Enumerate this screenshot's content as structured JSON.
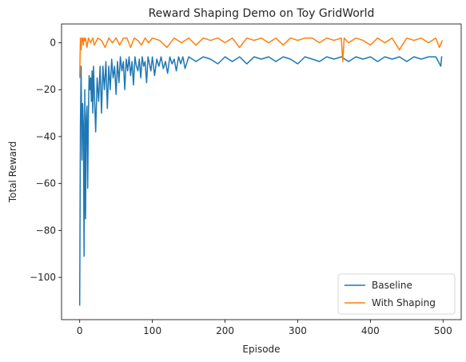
{
  "chart_data": {
    "type": "line",
    "title": "Reward Shaping Demo on Toy GridWorld",
    "xlabel": "Episode",
    "ylabel": "Total Reward",
    "xlim": [
      -25,
      525
    ],
    "ylim": [
      -118,
      8
    ],
    "xticks": [
      0,
      100,
      200,
      300,
      400,
      500
    ],
    "yticks": [
      -100,
      -80,
      -60,
      -40,
      -20,
      0
    ],
    "grid": false,
    "legend_position": "lower-right",
    "series": [
      {
        "name": "Baseline",
        "color": "#1f77b4",
        "x": [
          0,
          1,
          2,
          3,
          4,
          5,
          6,
          7,
          8,
          9,
          10,
          11,
          12,
          13,
          14,
          15,
          16,
          17,
          18,
          19,
          20,
          22,
          24,
          26,
          28,
          30,
          32,
          34,
          36,
          38,
          40,
          42,
          44,
          46,
          48,
          50,
          52,
          54,
          56,
          58,
          60,
          62,
          64,
          66,
          68,
          70,
          72,
          74,
          76,
          78,
          80,
          82,
          84,
          86,
          88,
          90,
          92,
          94,
          96,
          98,
          100,
          103,
          106,
          109,
          112,
          115,
          118,
          121,
          124,
          127,
          130,
          133,
          136,
          139,
          142,
          145,
          150,
          160,
          170,
          180,
          190,
          200,
          210,
          220,
          230,
          240,
          250,
          260,
          270,
          280,
          290,
          300,
          310,
          320,
          330,
          340,
          350,
          360,
          370,
          380,
          390,
          400,
          410,
          420,
          430,
          440,
          450,
          460,
          470,
          480,
          490,
          497,
          498,
          499
        ],
        "y": [
          -112,
          -35,
          -10,
          -50,
          -26,
          -35,
          -91,
          -20,
          -75,
          -32,
          -27,
          -62,
          -30,
          -14,
          -20,
          -15,
          -25,
          -12,
          -30,
          -10,
          -20,
          -38,
          -15,
          -25,
          -10,
          -30,
          -10,
          -20,
          -8,
          -28,
          -10,
          -20,
          -7,
          -15,
          -10,
          -22,
          -8,
          -17,
          -6,
          -12,
          -8,
          -20,
          -7,
          -12,
          -6,
          -14,
          -8,
          -18,
          -6,
          -10,
          -12,
          -7,
          -15,
          -6,
          -10,
          -8,
          -17,
          -6,
          -9,
          -12,
          -6,
          -14,
          -7,
          -10,
          -6,
          -11,
          -8,
          -13,
          -6,
          -9,
          -7,
          -12,
          -6,
          -9,
          -6,
          -11,
          -6,
          -8,
          -6,
          -7,
          -9,
          -6,
          -8,
          -6,
          -9,
          -6,
          -7,
          -6,
          -8,
          -6,
          -7,
          -9,
          -6,
          -7,
          -8,
          -6,
          -7,
          -6,
          -8,
          -6,
          -7,
          -6,
          -8,
          -6,
          -7,
          -6,
          -8,
          -6,
          -7,
          -6,
          -6,
          -10,
          -6,
          -6
        ]
      },
      {
        "name": "With Shaping",
        "color": "#ff7f0e",
        "x": [
          0,
          1,
          2,
          3,
          4,
          5,
          6,
          7,
          8,
          10,
          12,
          15,
          18,
          20,
          25,
          30,
          35,
          40,
          45,
          50,
          55,
          60,
          65,
          70,
          75,
          80,
          85,
          90,
          95,
          100,
          110,
          120,
          130,
          140,
          150,
          160,
          170,
          180,
          190,
          200,
          210,
          220,
          230,
          240,
          250,
          260,
          270,
          280,
          290,
          300,
          310,
          320,
          330,
          340,
          350,
          360,
          362,
          364,
          370,
          380,
          390,
          400,
          410,
          420,
          430,
          440,
          450,
          460,
          470,
          480,
          490,
          495,
          499
        ],
        "y": [
          -15,
          2,
          -3,
          2,
          2,
          -1,
          2,
          1,
          2,
          -2,
          2,
          0,
          2,
          -1,
          2,
          1,
          -2,
          2,
          0,
          2,
          -1,
          2,
          2,
          -2,
          2,
          1,
          -1,
          2,
          0,
          2,
          1,
          -2,
          2,
          0,
          2,
          -1,
          2,
          1,
          2,
          0,
          2,
          -2,
          2,
          1,
          2,
          0,
          2,
          -1,
          2,
          1,
          2,
          2,
          0,
          2,
          1,
          2,
          -8,
          2,
          0,
          2,
          1,
          -1,
          2,
          0,
          2,
          -3,
          2,
          1,
          2,
          0,
          2,
          -2,
          1
        ]
      }
    ]
  }
}
